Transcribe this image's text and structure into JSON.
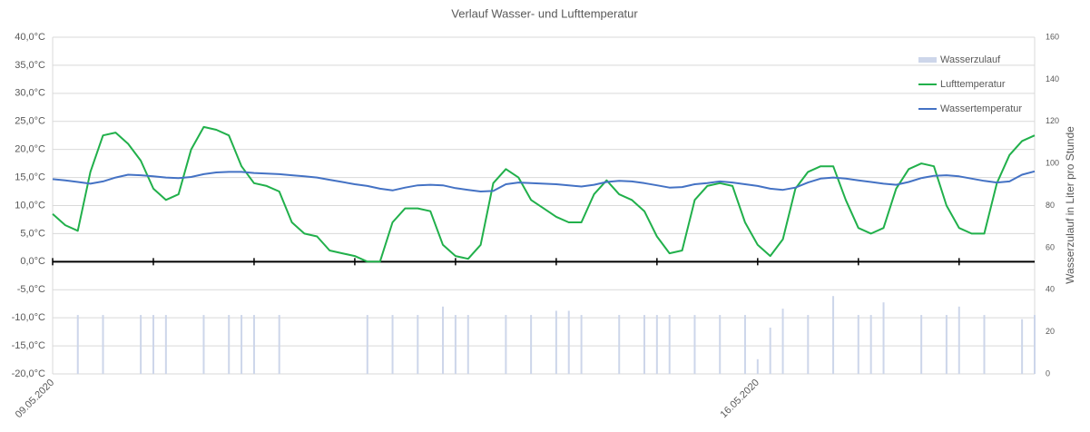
{
  "chart_data": {
    "type": "line",
    "title": "Verlauf Wasser- und Lufttemperatur",
    "y2_label": "Wasserzulauf in Liter pro Stunde",
    "categories": [
      "09.05.2020",
      null,
      null,
      null,
      null,
      null,
      null,
      null,
      null,
      null,
      null,
      null,
      null,
      null,
      null,
      null,
      null,
      null,
      null,
      null,
      null,
      null,
      null,
      null,
      null,
      null,
      null,
      null,
      null,
      null,
      null,
      null,
      null,
      null,
      null,
      null,
      null,
      null,
      null,
      null,
      null,
      null,
      null,
      null,
      null,
      null,
      null,
      null,
      null,
      null,
      null,
      null,
      null,
      null,
      null,
      null,
      "16.05.2020",
      null,
      null,
      null,
      null,
      null,
      null,
      null,
      null,
      null,
      null,
      null,
      null,
      null,
      null,
      null,
      null,
      null,
      null,
      null,
      null,
      null,
      null
    ],
    "series": [
      {
        "name": "Wasserzulauf",
        "type": "bar",
        "axis": "y2",
        "color": "#cdd6ea",
        "values": [
          null,
          null,
          28,
          null,
          28,
          null,
          null,
          28,
          28,
          28,
          null,
          null,
          28,
          null,
          28,
          28,
          28,
          null,
          28,
          null,
          null,
          null,
          null,
          null,
          null,
          28,
          null,
          28,
          null,
          28,
          null,
          32,
          28,
          28,
          null,
          null,
          28,
          null,
          28,
          null,
          30,
          30,
          28,
          null,
          null,
          28,
          null,
          28,
          28,
          28,
          null,
          28,
          null,
          28,
          null,
          28,
          7,
          22,
          31,
          null,
          28,
          null,
          37,
          null,
          28,
          28,
          34,
          null,
          null,
          28,
          null,
          28,
          32,
          null,
          28,
          null,
          null,
          26,
          28
        ]
      },
      {
        "name": "Lufttemperatur",
        "type": "line",
        "color": "#21b04b",
        "values": [
          8.5,
          6.5,
          5.5,
          16,
          22.5,
          23,
          21,
          18,
          13,
          11,
          12,
          20,
          24,
          23.5,
          22.5,
          17,
          14,
          13.5,
          12.5,
          7,
          5,
          4.5,
          2,
          1.5,
          1,
          0,
          0,
          7,
          9.5,
          9.5,
          9,
          3,
          1,
          0.5,
          3,
          14,
          16.5,
          15,
          11,
          9.5,
          8,
          7,
          7,
          12,
          14.5,
          12,
          11,
          9,
          4.5,
          1.5,
          2,
          11,
          13.5,
          14,
          13.5,
          7,
          3,
          1,
          4,
          13,
          16,
          17,
          17,
          11,
          6,
          5,
          6,
          13,
          16.5,
          17.5,
          17,
          10,
          6,
          5,
          5,
          14,
          19,
          21.5,
          22.5
        ]
      },
      {
        "name": "Wassertemperatur",
        "type": "line",
        "color": "#4472c4",
        "values": [
          14.7,
          14.5,
          14.2,
          13.9,
          14.3,
          15,
          15.5,
          15.4,
          15.2,
          15,
          14.9,
          15.1,
          15.6,
          15.9,
          16,
          16,
          15.8,
          15.7,
          15.6,
          15.4,
          15.2,
          15,
          14.6,
          14.2,
          13.8,
          13.5,
          13,
          12.7,
          13.2,
          13.6,
          13.7,
          13.6,
          13.1,
          12.8,
          12.5,
          12.6,
          13.8,
          14.1,
          14,
          13.9,
          13.8,
          13.6,
          13.4,
          13.7,
          14.2,
          14.4,
          14.3,
          14,
          13.6,
          13.2,
          13.3,
          13.8,
          14,
          14.3,
          14.1,
          13.8,
          13.5,
          13,
          12.8,
          13.2,
          14.1,
          14.8,
          15,
          14.8,
          14.5,
          14.2,
          13.9,
          13.7,
          14.2,
          14.9,
          15.3,
          15.4,
          15.2,
          14.8,
          14.4,
          14.1,
          14.3,
          15.5,
          16.1
        ]
      }
    ],
    "ylim": [
      -20,
      40
    ],
    "yticks": [
      {
        "value": -20,
        "label": "-20,0°C"
      },
      {
        "value": -15,
        "label": "-15,0°C"
      },
      {
        "value": -10,
        "label": "-10,0°C"
      },
      {
        "value": -5,
        "label": "-5,0°C"
      },
      {
        "value": 0,
        "label": "0,0°C"
      },
      {
        "value": 5,
        "label": "5,0°C"
      },
      {
        "value": 10,
        "label": "10,0°C"
      },
      {
        "value": 15,
        "label": "15,0°C"
      },
      {
        "value": 20,
        "label": "20,0°C"
      },
      {
        "value": 25,
        "label": "25,0°C"
      },
      {
        "value": 30,
        "label": "30,0°C"
      },
      {
        "value": 35,
        "label": "35,0°C"
      },
      {
        "value": 40,
        "label": "40,0°C"
      }
    ],
    "y2lim": [
      0,
      160
    ],
    "y2ticks": [
      0,
      20,
      40,
      60,
      80,
      100,
      120,
      140,
      160
    ],
    "grid": true,
    "legend": "top-right"
  }
}
